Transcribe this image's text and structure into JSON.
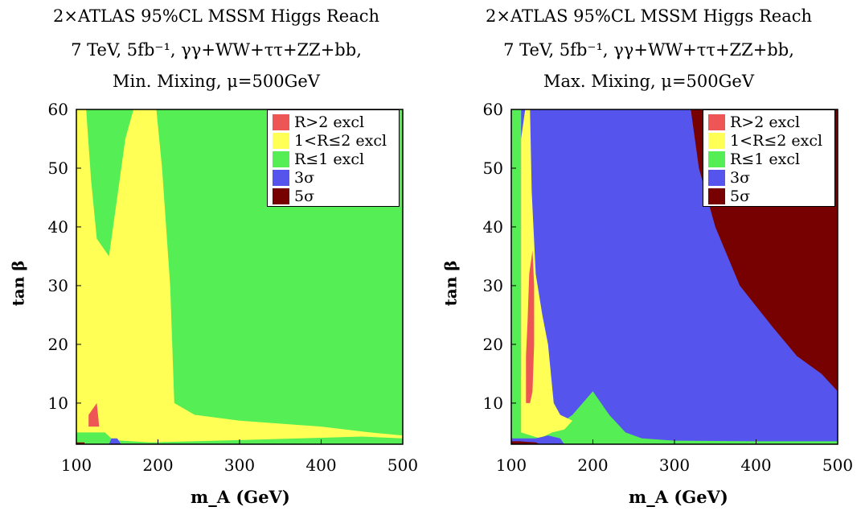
{
  "chart_data": [
    {
      "type": "heatmap",
      "title_lines": [
        "2×ATLAS 95%CL MSSM Higgs Reach",
        "7 TeV, 5fb⁻¹, γγ+WW+ττ+ZZ+bb,",
        "Min. Mixing, μ=500GeV"
      ],
      "xlabel": "m_A (GeV)",
      "ylabel": "tan β",
      "xlim": [
        100,
        500
      ],
      "ylim": [
        3,
        60
      ],
      "x_ticks": [
        "100",
        "200",
        "300",
        "400",
        "500"
      ],
      "y_ticks": [
        "10",
        "20",
        "30",
        "40",
        "50",
        "60"
      ],
      "legend_position": "top-right",
      "legend": [
        {
          "label": "R>2 excl",
          "color": "#ee5555"
        },
        {
          "label": "1<R≤2 excl",
          "color": "#ffff55"
        },
        {
          "label": "R≤1 excl",
          "color": "#55ee55"
        },
        {
          "label": "3σ",
          "color": "#5555ee"
        },
        {
          "label": "5σ",
          "color": "#770000"
        }
      ],
      "regions": [
        {
          "category": "1<R≤2 excl",
          "boundary": [
            [
              100,
              3
            ],
            [
              100,
              60
            ],
            [
              112,
              60
            ],
            [
              118,
              48
            ],
            [
              125,
              38
            ],
            [
              140,
              35
            ],
            [
              150,
              45
            ],
            [
              160,
              55
            ],
            [
              170,
              60
            ],
            [
              198,
              60
            ],
            [
              205,
              50
            ],
            [
              215,
              30
            ],
            [
              220,
              10
            ],
            [
              245,
              8
            ],
            [
              300,
              7
            ],
            [
              400,
              6
            ],
            [
              460,
              5
            ],
            [
              500,
              4.5
            ],
            [
              500,
              3
            ]
          ]
        },
        {
          "category": "R≤1 excl",
          "boundary": [
            [
              100,
              3
            ],
            [
              100,
              5
            ],
            [
              135,
              5
            ],
            [
              145,
              3.7
            ],
            [
              190,
              3.3
            ],
            [
              300,
              3.7
            ],
            [
              400,
              4.1
            ],
            [
              450,
              4.3
            ],
            [
              500,
              4
            ],
            [
              500,
              3
            ]
          ]
        },
        {
          "category": "R>2 excl",
          "boundary": [
            [
              115,
              6
            ],
            [
              115,
              8
            ],
            [
              120,
              9
            ],
            [
              125,
              10
            ],
            [
              128,
              6
            ]
          ]
        },
        {
          "category": "3σ",
          "boundary": [
            [
              140,
              3
            ],
            [
              143,
              4
            ],
            [
              150,
              4
            ],
            [
              155,
              3
            ]
          ]
        },
        {
          "category": "5σ",
          "boundary": [
            [
              100,
              3
            ],
            [
              100,
              3.3
            ],
            [
              110,
              3.3
            ],
            [
              110,
              3
            ]
          ]
        }
      ]
    },
    {
      "type": "heatmap",
      "title_lines": [
        "2×ATLAS 95%CL MSSM Higgs Reach",
        "7 TeV, 5fb⁻¹, γγ+WW+ττ+ZZ+bb,",
        "Max. Mixing, μ=500GeV"
      ],
      "xlabel": "m_A (GeV)",
      "ylabel": "tan β",
      "xlim": [
        100,
        500
      ],
      "ylim": [
        3,
        60
      ],
      "x_ticks": [
        "100",
        "200",
        "300",
        "400",
        "500"
      ],
      "y_ticks": [
        "10",
        "20",
        "30",
        "40",
        "50",
        "60"
      ],
      "legend_position": "top-right",
      "legend": [
        {
          "label": "R>2 excl",
          "color": "#ee5555"
        },
        {
          "label": "1<R≤2 excl",
          "color": "#ffff55"
        },
        {
          "label": "R≤1 excl",
          "color": "#55ee55"
        },
        {
          "label": "3σ",
          "color": "#5555ee"
        },
        {
          "label": "5σ",
          "color": "#770000"
        }
      ],
      "regions": [
        {
          "category": "R≤1 excl",
          "boundary": [
            [
              100,
              3
            ],
            [
              100,
              60
            ],
            [
              112,
              60
            ],
            [
              112,
              15
            ],
            [
              115,
              5
            ],
            [
              140,
              6
            ],
            [
              155,
              5.5
            ],
            [
              165,
              7
            ],
            [
              175,
              8
            ],
            [
              200,
              12
            ],
            [
              220,
              8
            ],
            [
              240,
              5
            ],
            [
              260,
              4
            ],
            [
              300,
              3.6
            ],
            [
              400,
              3.5
            ],
            [
              500,
              3.5
            ],
            [
              500,
              3
            ]
          ]
        },
        {
          "category": "1<R≤2 excl",
          "boundary": [
            [
              112,
              5
            ],
            [
              112,
              55
            ],
            [
              117,
              60
            ],
            [
              123,
              60
            ],
            [
              125,
              46
            ],
            [
              130,
              32
            ],
            [
              138,
              25
            ],
            [
              145,
              20
            ],
            [
              152,
              10
            ],
            [
              160,
              8
            ],
            [
              175,
              7
            ],
            [
              165,
              5.5
            ],
            [
              150,
              5
            ],
            [
              135,
              4
            ]
          ]
        },
        {
          "category": "3σ",
          "boundary": [
            [
              199,
              60
            ],
            [
              201,
              40
            ],
            [
              210,
              22
            ],
            [
              225,
              12
            ],
            [
              240,
              8
            ],
            [
              260,
              5.5
            ],
            [
              280,
              4.5
            ],
            [
              300,
              4
            ],
            [
              500,
              4
            ],
            [
              500,
              12
            ],
            [
              480,
              15
            ],
            [
              450,
              18
            ],
            [
              420,
              23
            ],
            [
              380,
              30
            ],
            [
              350,
              40
            ],
            [
              330,
              50
            ],
            [
              320,
              60
            ]
          ]
        },
        {
          "category": "5σ",
          "boundary": [
            [
              320,
              60
            ],
            [
              330,
              50
            ],
            [
              350,
              40
            ],
            [
              380,
              30
            ],
            [
              420,
              23
            ],
            [
              450,
              18
            ],
            [
              480,
              15
            ],
            [
              500,
              12
            ],
            [
              500,
              60
            ]
          ]
        },
        {
          "category": "R>2 excl",
          "boundary": [
            [
              118,
              10
            ],
            [
              118,
              18
            ],
            [
              120,
              24
            ],
            [
              122,
              32
            ],
            [
              126,
              36
            ],
            [
              128,
              30
            ],
            [
              128,
              20
            ],
            [
              126,
              12
            ],
            [
              123,
              10
            ]
          ]
        },
        {
          "category": "3σ",
          "boundary": [
            [
              100,
              3
            ],
            [
              100,
              4
            ],
            [
              130,
              4
            ],
            [
              145,
              4.5
            ],
            [
              160,
              4
            ],
            [
              165,
              3
            ]
          ]
        },
        {
          "category": "5σ",
          "boundary": [
            [
              100,
              3
            ],
            [
              100,
              3.5
            ],
            [
              110,
              3.5
            ],
            [
              120,
              3.4
            ],
            [
              130,
              3.3
            ],
            [
              135,
              3
            ]
          ]
        }
      ]
    }
  ]
}
